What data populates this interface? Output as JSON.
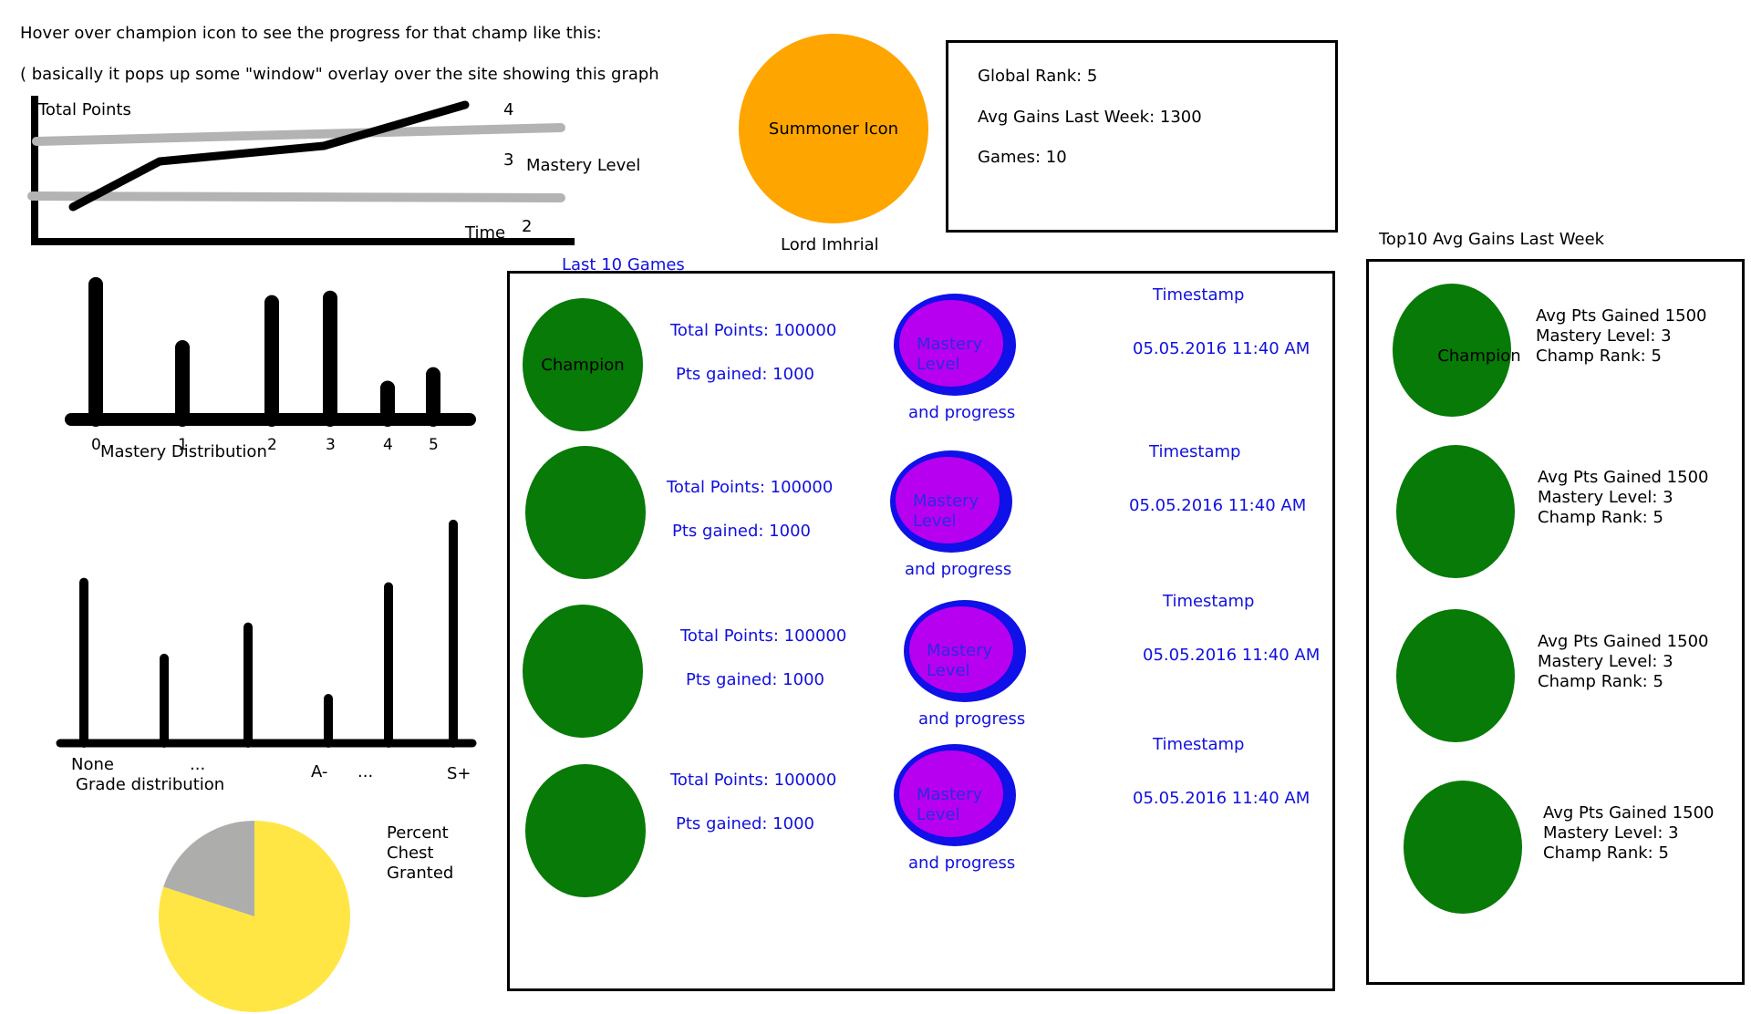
{
  "intro": {
    "line1": "Hover over champion icon to see the progress for that champ like this:",
    "line2": "( basically it pops up some \"window\" overlay over the site showing this graph"
  },
  "progress_chart": {
    "ylabel": "Total Points",
    "xlabel": "Time",
    "mastery_label": "Mastery Level",
    "level_labels": [
      "4",
      "3",
      "2"
    ],
    "colors": {
      "points_line": "#000000",
      "level_lines": "#b3b3b3"
    }
  },
  "summoner": {
    "icon_label": "Summoner Icon",
    "name": "Lord Imhrial",
    "icon_color": "#ffa500"
  },
  "global_stats": {
    "rank": "Global Rank: 5",
    "avg_gains": "Avg Gains Last Week: 1300",
    "games": "Games: 10"
  },
  "mastery_distribution": {
    "title": "Mastery Distribution",
    "chart_data": {
      "type": "bar",
      "categories": [
        "0",
        "1",
        "2",
        "3",
        "4",
        "5"
      ],
      "values": [
        15,
        8,
        13,
        13.5,
        3.5,
        5
      ],
      "ylim": [
        0,
        16
      ],
      "title": "Mastery Distribution"
    }
  },
  "grade_distribution": {
    "title": "Grade distribution",
    "tick_labels": [
      "None",
      "...",
      "A-",
      "...",
      "S+"
    ],
    "chart_data": {
      "type": "bar",
      "values": [
        18,
        9.5,
        13,
        5,
        17.5,
        24.5
      ],
      "ylim": [
        0,
        25
      ],
      "title": "Grade distribution"
    }
  },
  "chest_pie": {
    "label_lines": [
      "Percent",
      "Chest",
      "Granted"
    ],
    "chart_data": {
      "type": "pie",
      "values": [
        80,
        20
      ],
      "colors": [
        "#ffe645",
        "#adadab"
      ]
    }
  },
  "last_games": {
    "title": "Last 10 Games",
    "rows": [
      {
        "champion": "Champion",
        "total_points": "Total Points: 100000",
        "pts_gained": "Pts gained: 1000",
        "mastery_top": "Mastery",
        "mastery_bottom": "Level",
        "progress": "and progress",
        "timestamp_label": "Timestamp",
        "timestamp": "05.05.2016 11:40 AM"
      },
      {
        "champion": "",
        "total_points": "Total Points: 100000",
        "pts_gained": "Pts gained: 1000",
        "mastery_top": "Mastery",
        "mastery_bottom": "Level",
        "progress": "and progress",
        "timestamp_label": "Timestamp",
        "timestamp": "05.05.2016 11:40 AM"
      },
      {
        "champion": "",
        "total_points": "Total Points: 100000",
        "pts_gained": "Pts gained: 1000",
        "mastery_top": "Mastery",
        "mastery_bottom": "Level",
        "progress": "and progress",
        "timestamp_label": "Timestamp",
        "timestamp": "05.05.2016 11:40 AM"
      },
      {
        "champion": "",
        "total_points": "Total Points: 100000",
        "pts_gained": "Pts gained: 1000",
        "mastery_top": "Mastery",
        "mastery_bottom": "Level",
        "progress": "and progress",
        "timestamp_label": "Timestamp",
        "timestamp": "05.05.2016 11:40 AM"
      }
    ]
  },
  "top10": {
    "title": "Top10 Avg Gains Last Week",
    "rows": [
      {
        "champion": "Champion",
        "avg": "Avg Pts Gained 1500",
        "level": "Mastery Level: 3",
        "rank": "Champ Rank: 5"
      },
      {
        "champion": "",
        "avg": "Avg Pts Gained 1500",
        "level": "Mastery Level: 3",
        "rank": "Champ Rank: 5"
      },
      {
        "champion": "",
        "avg": "Avg Pts Gained 1500",
        "level": "Mastery Level: 3",
        "rank": "Champ Rank: 5"
      },
      {
        "champion": "",
        "avg": "Avg Pts Gained 1500",
        "level": "Mastery Level: 3",
        "rank": "Champ Rank: 5"
      }
    ]
  },
  "colors": {
    "champion_green": "#077a07",
    "mastery_ring": "#1010e8",
    "mastery_fill": "#b800f0",
    "link_blue": "#1010e0"
  }
}
